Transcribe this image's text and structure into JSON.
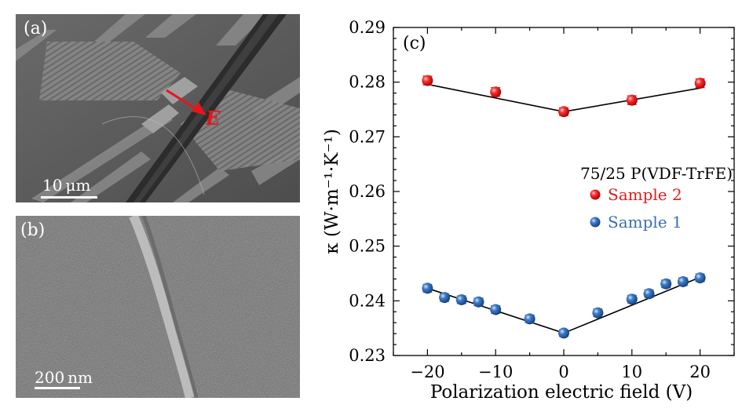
{
  "panel_a": {
    "label": "(a)",
    "scale_bar": "10 μm",
    "field_label": "E"
  },
  "panel_b": {
    "label": "(b)",
    "scale_bar": "200 nm"
  },
  "colors": {
    "sample1": "#3a6fb0",
    "sample2": "#e11d1d",
    "arrow": "#e8141b"
  },
  "chart_data": {
    "type": "scatter",
    "panel_label": "(c)",
    "xlabel": "Polarization electric field (V)",
    "ylabel": "κ (W·m⁻¹·K⁻¹)",
    "xlim": [
      -25,
      25
    ],
    "ylim": [
      0.23,
      0.29
    ],
    "xticks": [
      "−20",
      "−10",
      "0",
      "10",
      "20"
    ],
    "yticks": [
      "0.23",
      "0.24",
      "0.25",
      "0.26",
      "0.27",
      "0.28",
      "0.29"
    ],
    "legend_title": "75/25 P(VDF-TrFE)",
    "legend_position": "right",
    "series": [
      {
        "name": "Sample 2",
        "color": "#e11d1d",
        "x": [
          -20,
          -10,
          0,
          10,
          20
        ],
        "y": [
          0.2803,
          0.2782,
          0.2746,
          0.2767,
          0.2798
        ],
        "err": [
          0.0008,
          0.0008,
          0.0007,
          0.0008,
          0.0008
        ],
        "fit_x": [
          -20,
          0,
          20
        ],
        "fit_y": [
          0.2796,
          0.2746,
          0.2789
        ]
      },
      {
        "name": "Sample 1",
        "color": "#3a6fb0",
        "x": [
          -20,
          -17.5,
          -15,
          -12.5,
          -10,
          -5,
          0,
          5,
          10,
          12.5,
          15,
          17.5,
          20
        ],
        "y": [
          0.2423,
          0.2406,
          0.2402,
          0.2398,
          0.2384,
          0.2367,
          0.2341,
          0.2378,
          0.2403,
          0.2413,
          0.2431,
          0.2435,
          0.2442
        ],
        "err": [
          0.0007,
          0.0007,
          0.0007,
          0.0007,
          0.0007,
          0.0007,
          0.0006,
          0.0007,
          0.0007,
          0.0007,
          0.0007,
          0.0007,
          0.0007
        ],
        "fit_x": [
          -20,
          0,
          20
        ],
        "fit_y": [
          0.2423,
          0.2341,
          0.2443
        ]
      }
    ]
  }
}
